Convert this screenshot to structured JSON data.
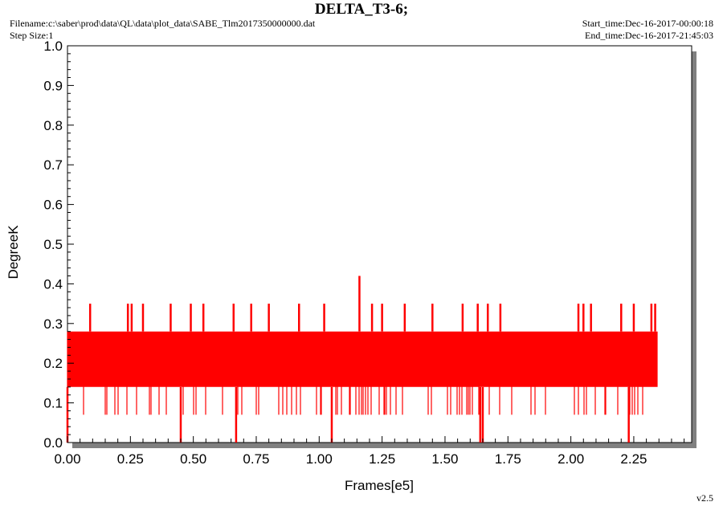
{
  "header": {
    "title": "DELTA_T3-6;",
    "filename": "Filename:c:\\saber\\prod\\data\\QL\\data\\plot_data\\SABE_Tlm2017350000000.dat",
    "step_size": "Step Size:1",
    "start_time": "Start_time:Dec-16-2017-00:00:18",
    "end_time": "End_time:Dec-16-2017-21:45:03"
  },
  "version": "v2.5",
  "chart_data": {
    "type": "line",
    "title": "DELTA_T3-6;",
    "xlabel": "Frames[e5]",
    "ylabel": "DegreeK",
    "xlim": [
      0,
      2.48
    ],
    "ylim": [
      0,
      1.0
    ],
    "x_ticks": [
      "0.00",
      "0.25",
      "0.50",
      "0.75",
      "1.00",
      "1.25",
      "1.50",
      "1.75",
      "2.00",
      "2.25"
    ],
    "y_ticks": [
      "0.0",
      "0.1",
      "0.2",
      "0.3",
      "0.4",
      "0.5",
      "0.6",
      "0.7",
      "0.8",
      "0.9",
      "1.0"
    ],
    "grid": false,
    "series": [
      {
        "color": "#ff0000",
        "x_range": [
          0,
          2.345
        ],
        "band": [
          0.14,
          0.28
        ],
        "typical_min": 0.07,
        "typical_max": 0.28,
        "spikes": [
          {
            "x": 0.09,
            "y": 0.35
          },
          {
            "x": 0.24,
            "y": 0.35
          },
          {
            "x": 0.255,
            "y": 0.35
          },
          {
            "x": 0.3,
            "y": 0.35
          },
          {
            "x": 0.41,
            "y": 0.35
          },
          {
            "x": 0.49,
            "y": 0.35
          },
          {
            "x": 0.54,
            "y": 0.35
          },
          {
            "x": 0.66,
            "y": 0.35
          },
          {
            "x": 0.73,
            "y": 0.35
          },
          {
            "x": 0.8,
            "y": 0.35
          },
          {
            "x": 0.92,
            "y": 0.35
          },
          {
            "x": 1.02,
            "y": 0.35
          },
          {
            "x": 1.16,
            "y": 0.42
          },
          {
            "x": 1.21,
            "y": 0.35
          },
          {
            "x": 1.25,
            "y": 0.35
          },
          {
            "x": 1.34,
            "y": 0.35
          },
          {
            "x": 1.45,
            "y": 0.35
          },
          {
            "x": 1.57,
            "y": 0.35
          },
          {
            "x": 1.63,
            "y": 0.35
          },
          {
            "x": 1.67,
            "y": 0.35
          },
          {
            "x": 1.72,
            "y": 0.35
          },
          {
            "x": 2.03,
            "y": 0.35
          },
          {
            "x": 2.05,
            "y": 0.35
          },
          {
            "x": 2.08,
            "y": 0.35
          },
          {
            "x": 2.2,
            "y": 0.35
          },
          {
            "x": 2.25,
            "y": 0.35
          },
          {
            "x": 2.32,
            "y": 0.35
          },
          {
            "x": 2.335,
            "y": 0.35
          }
        ],
        "dips": [
          {
            "x": 0.0,
            "y": 0.0
          },
          {
            "x": 0.45,
            "y": 0.0
          },
          {
            "x": 0.67,
            "y": 0.0
          },
          {
            "x": 1.05,
            "y": 0.0
          },
          {
            "x": 1.64,
            "y": 0.0
          },
          {
            "x": 1.65,
            "y": 0.0
          },
          {
            "x": 2.23,
            "y": 0.0
          }
        ]
      }
    ]
  }
}
